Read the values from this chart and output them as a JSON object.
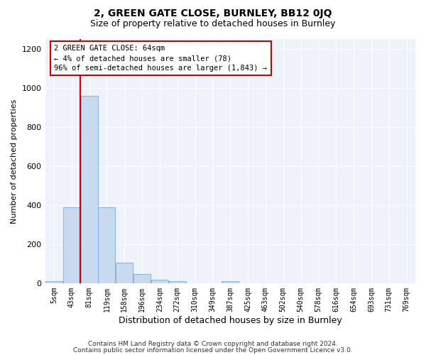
{
  "title1": "2, GREEN GATE CLOSE, BURNLEY, BB12 0JQ",
  "title2": "Size of property relative to detached houses in Burnley",
  "xlabel": "Distribution of detached houses by size in Burnley",
  "ylabel": "Number of detached properties",
  "categories": [
    "5sqm",
    "43sqm",
    "81sqm",
    "119sqm",
    "158sqm",
    "196sqm",
    "234sqm",
    "272sqm",
    "310sqm",
    "349sqm",
    "387sqm",
    "425sqm",
    "463sqm",
    "502sqm",
    "540sqm",
    "578sqm",
    "616sqm",
    "654sqm",
    "693sqm",
    "731sqm",
    "769sqm"
  ],
  "values": [
    10,
    390,
    960,
    390,
    105,
    45,
    18,
    10,
    0,
    0,
    10,
    0,
    0,
    0,
    0,
    0,
    0,
    0,
    0,
    0,
    0
  ],
  "bar_color": "#c8d9f0",
  "bar_edge_color": "#7aaad4",
  "ylim": [
    0,
    1250
  ],
  "yticks": [
    0,
    200,
    400,
    600,
    800,
    1000,
    1200
  ],
  "vline_color": "#cc0000",
  "annotation_text": "2 GREEN GATE CLOSE: 64sqm\n← 4% of detached houses are smaller (78)\n96% of semi-detached houses are larger (1,843) →",
  "annotation_box_color": "#cc0000",
  "footer1": "Contains HM Land Registry data © Crown copyright and database right 2024.",
  "footer2": "Contains public sector information licensed under the Open Government Licence v3.0.",
  "background_color": "#eef2fb"
}
